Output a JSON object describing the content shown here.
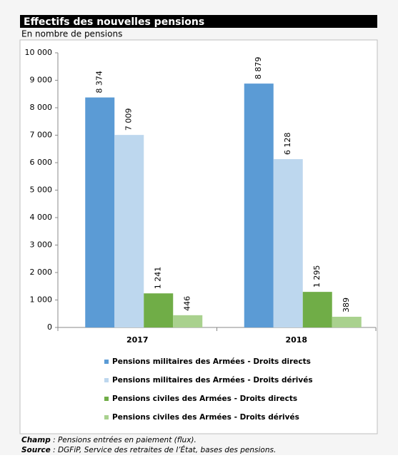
{
  "chart_data": {
    "type": "bar",
    "title": "Effectifs des nouvelles pensions",
    "subtitle": "En nombre de pensions",
    "categories": [
      "2017",
      "2018"
    ],
    "series": [
      {
        "name": "Pensions militaires des Armées - Droits directs",
        "color": "#5b9bd5",
        "values": [
          8374,
          8879
        ],
        "value_labels": [
          "8 374",
          "8 879"
        ]
      },
      {
        "name": "Pensions militaires des Armées - Droits dérivés",
        "color": "#bdd7ee",
        "values": [
          7009,
          6128
        ],
        "value_labels": [
          "7 009",
          "6 128"
        ]
      },
      {
        "name": "Pensions civiles des Armées - Droits directs",
        "color": "#70ad47",
        "values": [
          1241,
          1295
        ],
        "value_labels": [
          "1 241",
          "1 295"
        ]
      },
      {
        "name": "Pensions civiles des Armées - Droits dérivés",
        "color": "#a9d18e",
        "values": [
          446,
          389
        ],
        "value_labels": [
          "446",
          "389"
        ]
      }
    ],
    "ylim": [
      0,
      10000
    ],
    "yticks": [
      0,
      {
        "value": 1000,
        "label": "1 000"
      },
      {
        "value": 2000,
        "label": "2 000"
      },
      {
        "value": 3000,
        "label": "3 000"
      },
      {
        "value": 4000,
        "label": "4 000"
      },
      {
        "value": 5000,
        "label": "5 000"
      },
      {
        "value": 6000,
        "label": "6 000"
      },
      {
        "value": 7000,
        "label": "7 000"
      },
      {
        "value": 8000,
        "label": "8 000"
      },
      {
        "value": 9000,
        "label": "9 000"
      },
      {
        "value": 10000,
        "label": "10 000"
      }
    ],
    "grid": false,
    "notes": [
      {
        "label": "Champ",
        "text": " : Pensions entrées en paiement (flux)."
      },
      {
        "label": "Source",
        "text": " : DGFiP, Service des retraites de l’État, bases des pensions."
      }
    ]
  }
}
